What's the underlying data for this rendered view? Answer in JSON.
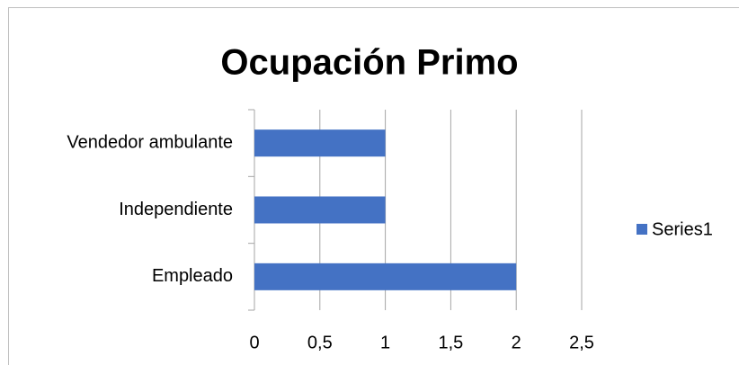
{
  "chart_data": {
    "type": "bar",
    "orientation": "horizontal",
    "title": "Ocupación Primo",
    "categories": [
      "Empleado",
      "Independiente",
      "Vendedor ambulante"
    ],
    "series": [
      {
        "name": "Series1",
        "color": "#4472c4",
        "values": [
          2,
          1,
          1
        ]
      }
    ],
    "xlim": [
      0,
      2.5
    ],
    "xticks": [
      0,
      {
        "value": 0.5,
        "label": "0,5"
      },
      1,
      {
        "value": 1.5,
        "label": "1,5"
      },
      2,
      {
        "value": 2.5,
        "label": "2,5"
      }
    ],
    "grid": true,
    "legend": "right"
  }
}
